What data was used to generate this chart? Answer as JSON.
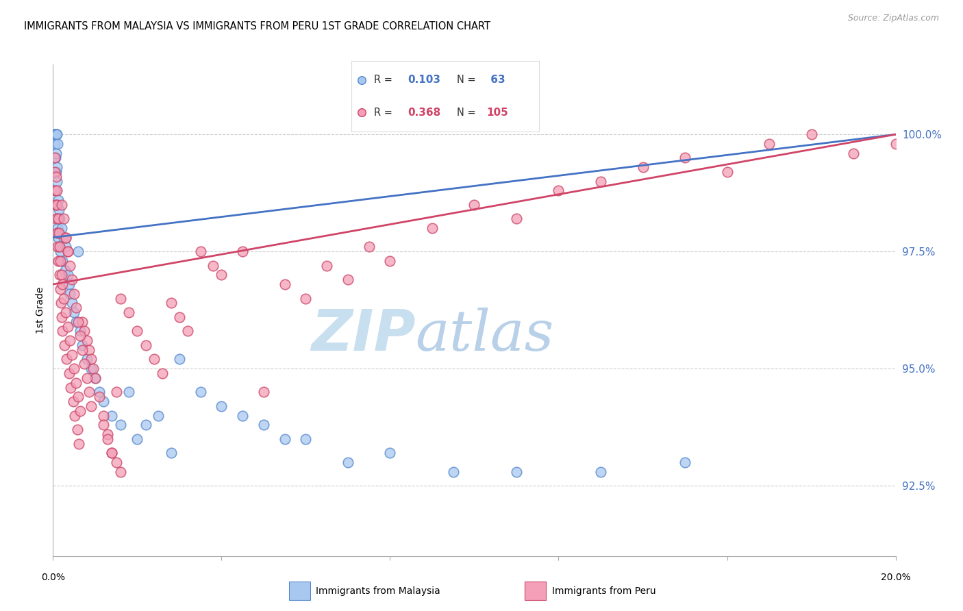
{
  "title": "IMMIGRANTS FROM MALAYSIA VS IMMIGRANTS FROM PERU 1ST GRADE CORRELATION CHART",
  "source_text": "Source: ZipAtlas.com",
  "ylabel": "1st Grade",
  "xlim": [
    0.0,
    20.0
  ],
  "ylim": [
    91.0,
    101.5
  ],
  "yticks": [
    92.5,
    95.0,
    97.5,
    100.0
  ],
  "ytick_labels": [
    "92.5%",
    "95.0%",
    "97.5%",
    "100.0%"
  ],
  "malaysia_color": "#A8C8F0",
  "peru_color": "#F4A0B8",
  "malaysia_edge_color": "#5588CC",
  "peru_edge_color": "#CC4466",
  "malaysia_line_color": "#4472C4",
  "peru_line_color": "#D04468",
  "background_color": "#FFFFFF",
  "grid_color": "#CCCCCC",
  "watermark_zip": "ZIP",
  "watermark_atlas": "atlas",
  "watermark_color_zip": "#C8DFF0",
  "watermark_color_atlas": "#B8D0E8",
  "legend_r_malaysia": "0.103",
  "legend_n_malaysia": " 63",
  "legend_r_peru": "0.368",
  "legend_n_peru": "105",
  "malaysia_x": [
    0.04,
    0.05,
    0.05,
    0.06,
    0.06,
    0.07,
    0.07,
    0.08,
    0.08,
    0.08,
    0.09,
    0.09,
    0.1,
    0.1,
    0.1,
    0.11,
    0.11,
    0.12,
    0.12,
    0.13,
    0.14,
    0.15,
    0.16,
    0.18,
    0.2,
    0.22,
    0.25,
    0.28,
    0.3,
    0.35,
    0.38,
    0.4,
    0.45,
    0.5,
    0.55,
    0.6,
    0.65,
    0.7,
    0.8,
    0.9,
    1.0,
    1.1,
    1.2,
    1.4,
    1.6,
    1.8,
    2.0,
    2.2,
    2.5,
    2.8,
    3.0,
    3.5,
    4.0,
    4.5,
    5.0,
    5.5,
    6.0,
    7.0,
    8.0,
    9.5,
    11.0,
    13.0,
    15.0
  ],
  "malaysia_y": [
    100.0,
    100.0,
    99.8,
    100.0,
    99.5,
    99.2,
    100.0,
    98.8,
    99.6,
    100.0,
    98.5,
    99.3,
    98.2,
    99.0,
    100.0,
    98.0,
    99.8,
    97.9,
    98.6,
    97.8,
    98.4,
    97.6,
    98.2,
    97.5,
    98.0,
    97.3,
    97.8,
    97.1,
    97.6,
    97.0,
    96.8,
    96.6,
    96.4,
    96.2,
    96.0,
    97.5,
    95.8,
    95.5,
    95.2,
    95.0,
    94.8,
    94.5,
    94.3,
    94.0,
    93.8,
    94.5,
    93.5,
    93.8,
    94.0,
    93.2,
    95.2,
    94.5,
    94.2,
    94.0,
    93.8,
    93.5,
    93.5,
    93.0,
    93.2,
    92.8,
    92.8,
    92.8,
    93.0
  ],
  "peru_x": [
    0.04,
    0.05,
    0.05,
    0.06,
    0.07,
    0.08,
    0.09,
    0.1,
    0.1,
    0.11,
    0.12,
    0.13,
    0.14,
    0.15,
    0.16,
    0.17,
    0.18,
    0.19,
    0.2,
    0.21,
    0.22,
    0.23,
    0.25,
    0.27,
    0.3,
    0.32,
    0.35,
    0.38,
    0.4,
    0.42,
    0.45,
    0.48,
    0.5,
    0.52,
    0.55,
    0.58,
    0.6,
    0.62,
    0.65,
    0.7,
    0.75,
    0.8,
    0.85,
    0.9,
    0.95,
    1.0,
    1.1,
    1.2,
    1.3,
    1.4,
    1.5,
    1.6,
    1.8,
    2.0,
    2.2,
    2.4,
    2.6,
    2.8,
    3.0,
    3.2,
    3.5,
    3.8,
    4.0,
    4.5,
    5.0,
    5.5,
    6.0,
    6.5,
    7.0,
    7.5,
    8.0,
    9.0,
    10.0,
    11.0,
    12.0,
    13.0,
    14.0,
    15.0,
    16.0,
    17.0,
    18.0,
    19.0,
    20.0,
    0.3,
    0.35,
    0.4,
    0.45,
    0.5,
    0.55,
    0.6,
    0.65,
    0.7,
    0.75,
    0.8,
    0.85,
    0.9,
    0.2,
    0.25,
    0.3,
    0.35,
    1.2,
    1.3,
    1.4,
    1.5,
    1.6
  ],
  "peru_y": [
    99.2,
    99.5,
    98.8,
    98.5,
    99.1,
    98.2,
    98.8,
    97.9,
    98.5,
    97.6,
    98.2,
    97.3,
    97.9,
    97.0,
    97.6,
    96.7,
    97.3,
    96.4,
    97.0,
    96.1,
    96.8,
    95.8,
    96.5,
    95.5,
    96.2,
    95.2,
    95.9,
    94.9,
    95.6,
    94.6,
    95.3,
    94.3,
    95.0,
    94.0,
    94.7,
    93.7,
    94.4,
    93.4,
    94.1,
    96.0,
    95.8,
    95.6,
    95.4,
    95.2,
    95.0,
    94.8,
    94.4,
    94.0,
    93.6,
    93.2,
    94.5,
    96.5,
    96.2,
    95.8,
    95.5,
    95.2,
    94.9,
    96.4,
    96.1,
    95.8,
    97.5,
    97.2,
    97.0,
    97.5,
    94.5,
    96.8,
    96.5,
    97.2,
    96.9,
    97.6,
    97.3,
    98.0,
    98.5,
    98.2,
    98.8,
    99.0,
    99.3,
    99.5,
    99.2,
    99.8,
    100.0,
    99.6,
    99.8,
    97.8,
    97.5,
    97.2,
    96.9,
    96.6,
    96.3,
    96.0,
    95.7,
    95.4,
    95.1,
    94.8,
    94.5,
    94.2,
    98.5,
    98.2,
    97.8,
    97.5,
    93.8,
    93.5,
    93.2,
    93.0,
    92.8
  ]
}
